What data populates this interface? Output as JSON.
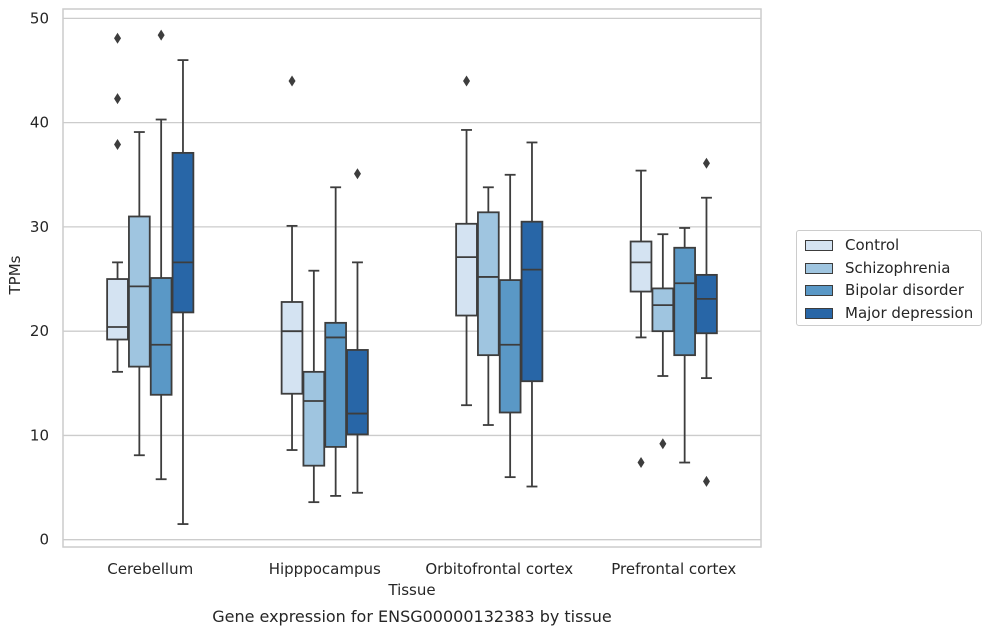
{
  "chart_data": {
    "type": "box",
    "title": "",
    "caption": "Gene expression for ENSG00000132383 by tissue",
    "xlabel": "Tissue",
    "ylabel": "TPMs",
    "ylim": [
      -0.7,
      50.9
    ],
    "yticks": [
      0,
      10,
      20,
      30,
      40,
      50
    ],
    "grid": "horizontal",
    "legend_position": "right",
    "categories": [
      "Cerebellum",
      "Hipppocampus",
      "Orbitofrontal cortex",
      "Prefrontal cortex"
    ],
    "series": [
      {
        "name": "Control",
        "color": "#d4e3f2",
        "boxes": [
          {
            "whislo": 16.1,
            "q1": 19.2,
            "med": 20.4,
            "q3": 25.0,
            "whishi": 26.6,
            "fliers": [
              48.1,
              42.3,
              37.9
            ]
          },
          {
            "whislo": 8.6,
            "q1": 14.0,
            "med": 20.0,
            "q3": 22.8,
            "whishi": 30.1,
            "fliers": [
              44.0
            ]
          },
          {
            "whislo": 12.9,
            "q1": 21.5,
            "med": 27.1,
            "q3": 30.3,
            "whishi": 39.3,
            "fliers": [
              44.0
            ]
          },
          {
            "whislo": 19.4,
            "q1": 23.8,
            "med": 26.6,
            "q3": 28.6,
            "whishi": 35.4,
            "fliers": [
              7.4
            ]
          }
        ]
      },
      {
        "name": "Schizophrenia",
        "color": "#9fc5e0",
        "boxes": [
          {
            "whislo": 8.1,
            "q1": 16.6,
            "med": 24.3,
            "q3": 31.0,
            "whishi": 39.1,
            "fliers": []
          },
          {
            "whislo": 3.6,
            "q1": 7.1,
            "med": 13.3,
            "q3": 16.1,
            "whishi": 25.8,
            "fliers": []
          },
          {
            "whislo": 11.0,
            "q1": 17.7,
            "med": 25.2,
            "q3": 31.4,
            "whishi": 33.8,
            "fliers": []
          },
          {
            "whislo": 15.7,
            "q1": 20.0,
            "med": 22.5,
            "q3": 24.1,
            "whishi": 29.3,
            "fliers": [
              9.2
            ]
          }
        ]
      },
      {
        "name": "Bipolar disorder",
        "color": "#5a98c6",
        "boxes": [
          {
            "whislo": 5.8,
            "q1": 13.9,
            "med": 18.7,
            "q3": 25.1,
            "whishi": 40.3,
            "fliers": [
              48.4
            ]
          },
          {
            "whislo": 4.2,
            "q1": 8.9,
            "med": 19.4,
            "q3": 20.8,
            "whishi": 33.8,
            "fliers": []
          },
          {
            "whislo": 6.0,
            "q1": 12.2,
            "med": 18.7,
            "q3": 24.9,
            "whishi": 35.0,
            "fliers": []
          },
          {
            "whislo": 7.4,
            "q1": 17.7,
            "med": 24.6,
            "q3": 28.0,
            "whishi": 29.9,
            "fliers": []
          }
        ]
      },
      {
        "name": "Major depression",
        "color": "#2866a7",
        "boxes": [
          {
            "whislo": 1.5,
            "q1": 21.8,
            "med": 26.6,
            "q3": 37.1,
            "whishi": 46.0,
            "fliers": []
          },
          {
            "whislo": 4.5,
            "q1": 10.1,
            "med": 12.1,
            "q3": 18.2,
            "whishi": 26.6,
            "fliers": [
              35.1
            ]
          },
          {
            "whislo": 5.1,
            "q1": 15.2,
            "med": 25.9,
            "q3": 30.5,
            "whishi": 38.1,
            "fliers": []
          },
          {
            "whislo": 15.5,
            "q1": 19.8,
            "med": 23.1,
            "q3": 25.4,
            "whishi": 32.8,
            "fliers": [
              36.1,
              5.6
            ]
          }
        ]
      }
    ]
  }
}
